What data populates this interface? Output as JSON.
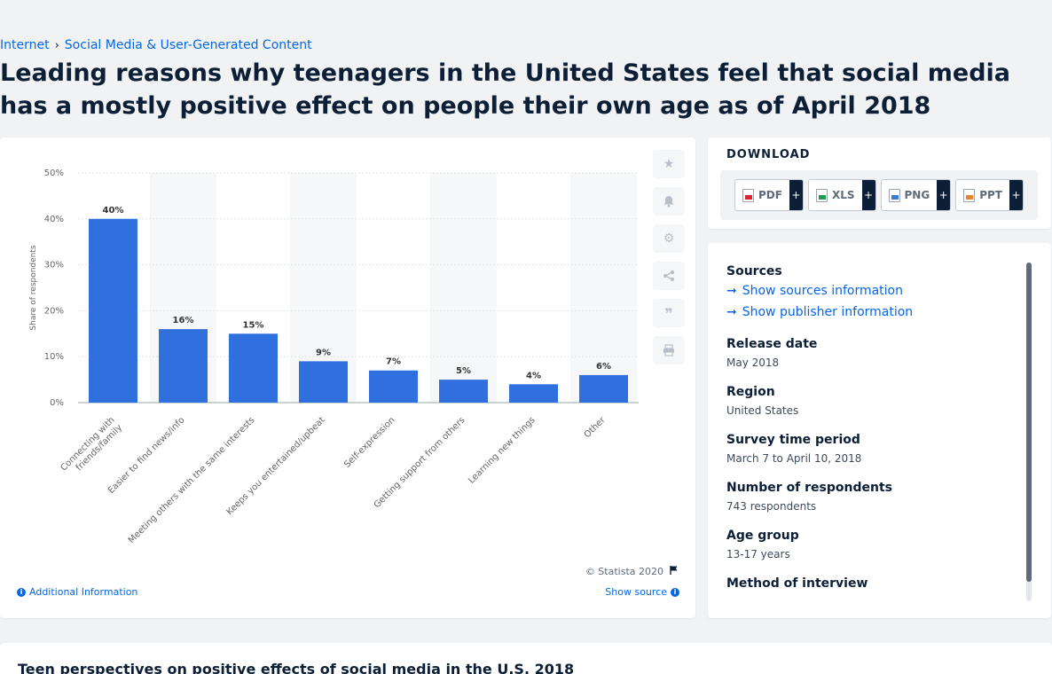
{
  "breadcrumb": {
    "items": [
      "Internet",
      "Social Media & User-Generated Content"
    ],
    "separator": "›"
  },
  "page_title": "Leading reasons why teenagers in the United States feel that social media has a mostly positive effect on people their own age as of April 2018",
  "chart_footer": {
    "copyright": "© Statista 2020",
    "additional_info": "Additional Information",
    "show_source": "Show source"
  },
  "download": {
    "title": "DOWNLOAD",
    "buttons": [
      {
        "label": "PDF",
        "color": "#d9262c"
      },
      {
        "label": "XLS",
        "color": "#1e9e4a"
      },
      {
        "label": "PNG",
        "color": "#3a7bd5"
      },
      {
        "label": "PPT",
        "color": "#e8832a"
      }
    ],
    "plus": "+"
  },
  "info": {
    "sources_label": "Sources",
    "show_sources": "Show sources information",
    "show_publisher": "Show publisher information",
    "release_date_label": "Release date",
    "release_date": "May 2018",
    "region_label": "Region",
    "region": "United States",
    "survey_period_label": "Survey time period",
    "survey_period": "March 7 to April 10, 2018",
    "respondents_label": "Number of respondents",
    "respondents": "743 respondents",
    "age_group_label": "Age group",
    "age_group": "13-17 years",
    "method_label": "Method of interview"
  },
  "bottom_title": "Teen perspectives on positive effects of social media in the U.S. 2018",
  "colors": {
    "bar": "#2f6fde",
    "accent": "#0666e5"
  },
  "chart_data": {
    "type": "bar",
    "categories": [
      "Connecting with friends/family",
      "Easier to find news/info",
      "Meeting others with the same interests",
      "Keeps you entertained/upbeat",
      "Self-expression",
      "Getting support from others",
      "Learning new things",
      "Other"
    ],
    "values": [
      40,
      16,
      15,
      9,
      7,
      5,
      4,
      6
    ],
    "data_labels": [
      "40%",
      "16%",
      "15%",
      "9%",
      "7%",
      "5%",
      "4%",
      "6%"
    ],
    "ylabel": "Share of respondents",
    "ylim": [
      0,
      50
    ],
    "yticks": [
      "0%",
      "10%",
      "20%",
      "30%",
      "40%",
      "50%"
    ],
    "grid": true,
    "legend": "none"
  }
}
